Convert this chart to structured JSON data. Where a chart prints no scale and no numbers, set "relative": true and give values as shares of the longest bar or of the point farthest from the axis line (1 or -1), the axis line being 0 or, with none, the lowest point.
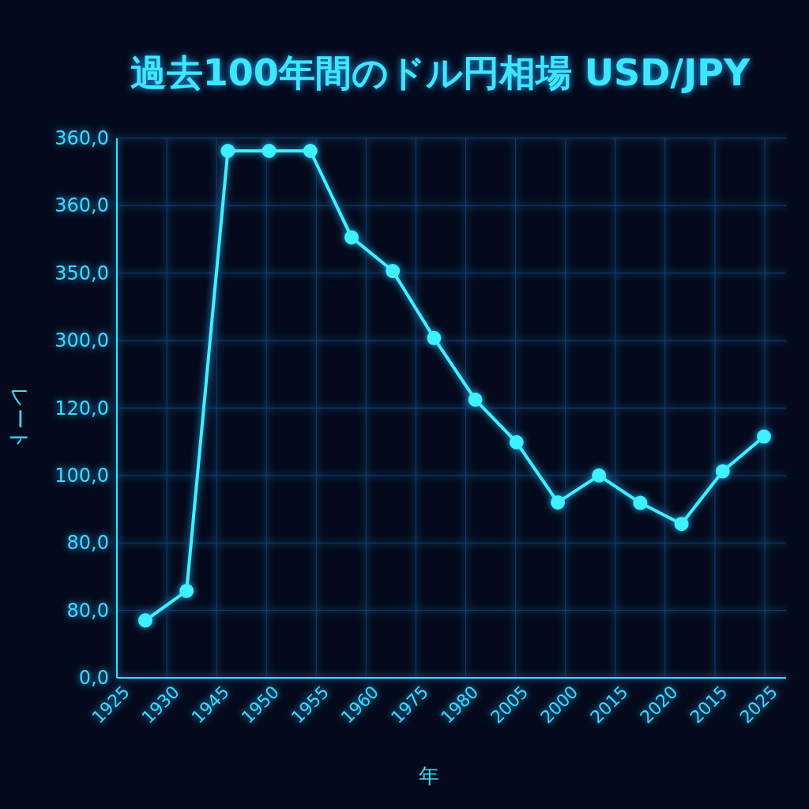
{
  "chart_data": {
    "type": "line",
    "title": "過去100年間のドル円相場 USD/JPY",
    "xlabel": "年",
    "ylabel": "レート",
    "categories": [
      null,
      null,
      null,
      null,
      null,
      null,
      null,
      null,
      null,
      null,
      null,
      null,
      null,
      null,
      null,
      null
    ],
    "relative": true,
    "series": [
      {
        "color": "#3ff0ff",
        "values": [
          0.109,
          0.165,
          1,
          1,
          1,
          0.836,
          0.772,
          0.645,
          0.528,
          0.447,
          0.333,
          0.384,
          0.332,
          0.292,
          0.392,
          0.458
        ]
      }
    ],
    "annotations": [
      "1925",
      "1930",
      "1945",
      "1950",
      "1955",
      "1960",
      "1975",
      "1980",
      "2005",
      "2000",
      "2015",
      "2020",
      "2015",
      "2025",
      "0,0",
      "80,0",
      "80,0",
      "100,0",
      "120,0",
      "300,0",
      "350,0",
      "360,0",
      "360,0"
    ],
    "grid": true,
    "marker": "circle",
    "line_style": "solid",
    "legend": false
  }
}
